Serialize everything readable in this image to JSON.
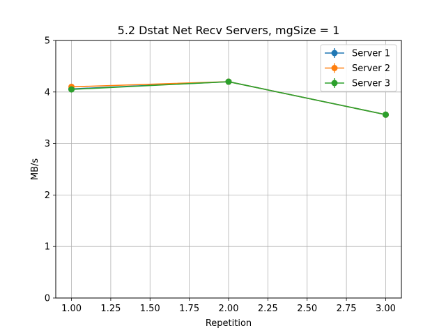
{
  "chart_data": {
    "type": "line",
    "title": "5.2 Dstat Net Recv Servers, mgSize = 1",
    "xlabel": "Repetition",
    "ylabel": "MB/s",
    "xlim": [
      0.9,
      3.1
    ],
    "ylim": [
      0,
      5
    ],
    "x_ticks": [
      "1.00",
      "1.25",
      "1.50",
      "1.75",
      "2.00",
      "2.25",
      "2.50",
      "2.75",
      "3.00"
    ],
    "y_ticks": [
      "0",
      "1",
      "2",
      "3",
      "4",
      "5"
    ],
    "grid": true,
    "legend_position": "top-right",
    "x": [
      1,
      2,
      3
    ],
    "series": [
      {
        "name": "Server 1",
        "color": "#1f77b4",
        "values": [
          4.06,
          4.2,
          3.56
        ]
      },
      {
        "name": "Server 2",
        "color": "#ff7f0e",
        "values": [
          4.1,
          4.2,
          3.56
        ]
      },
      {
        "name": "Server 3",
        "color": "#2ca02c",
        "values": [
          4.05,
          4.2,
          3.56
        ]
      }
    ]
  }
}
